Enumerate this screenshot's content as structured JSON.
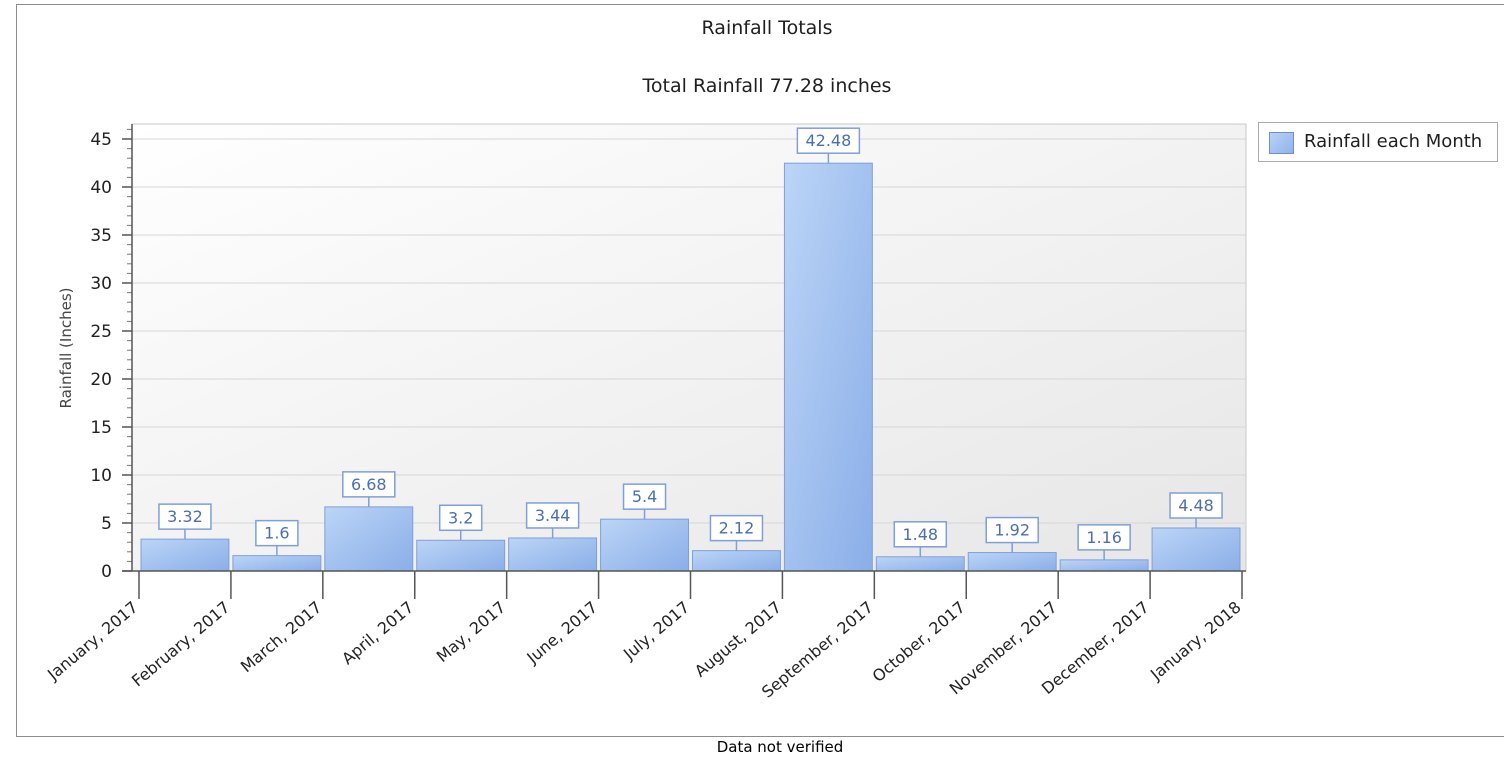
{
  "chart_data": {
    "type": "bar",
    "title": "Rainfall Totals",
    "subtitle": "Total Rainfall 77.28 inches",
    "ylabel": "Rainfall (Inches)",
    "xlabel": "",
    "ylim": [
      0,
      46.6
    ],
    "yticks": [
      0,
      5,
      10,
      15,
      20,
      25,
      30,
      35,
      40,
      45
    ],
    "ytick_labels": [
      "0",
      "5",
      "10",
      "15",
      "20",
      "25",
      "30",
      "35",
      "40",
      "45"
    ],
    "xtick_labels": [
      "January, 2017",
      "February, 2017",
      "March, 2017",
      "April, 2017",
      "May, 2017",
      "June, 2017",
      "July, 2017",
      "August, 2017",
      "September, 2017",
      "October, 2017",
      "November, 2017",
      "December, 2017",
      "January, 2018"
    ],
    "categories": [
      "January, 2017",
      "February, 2017",
      "March, 2017",
      "April, 2017",
      "May, 2017",
      "June, 2017",
      "July, 2017",
      "August, 2017",
      "September, 2017",
      "October, 2017",
      "November, 2017",
      "December, 2017"
    ],
    "series": [
      {
        "name": "Rainfall each Month",
        "values": [
          3.32,
          1.6,
          6.68,
          3.2,
          3.44,
          5.4,
          2.12,
          42.48,
          1.48,
          1.92,
          1.16,
          4.48
        ],
        "value_labels": [
          "3.32",
          "1.6",
          "6.68",
          "3.2",
          "3.44",
          "5.4",
          "2.12",
          "42.48",
          "1.48",
          "1.92",
          "1.16",
          "4.48"
        ],
        "color": "#9dbcee"
      }
    ],
    "grid": true,
    "legend_position": "top-right",
    "footer": "Data not verified"
  }
}
